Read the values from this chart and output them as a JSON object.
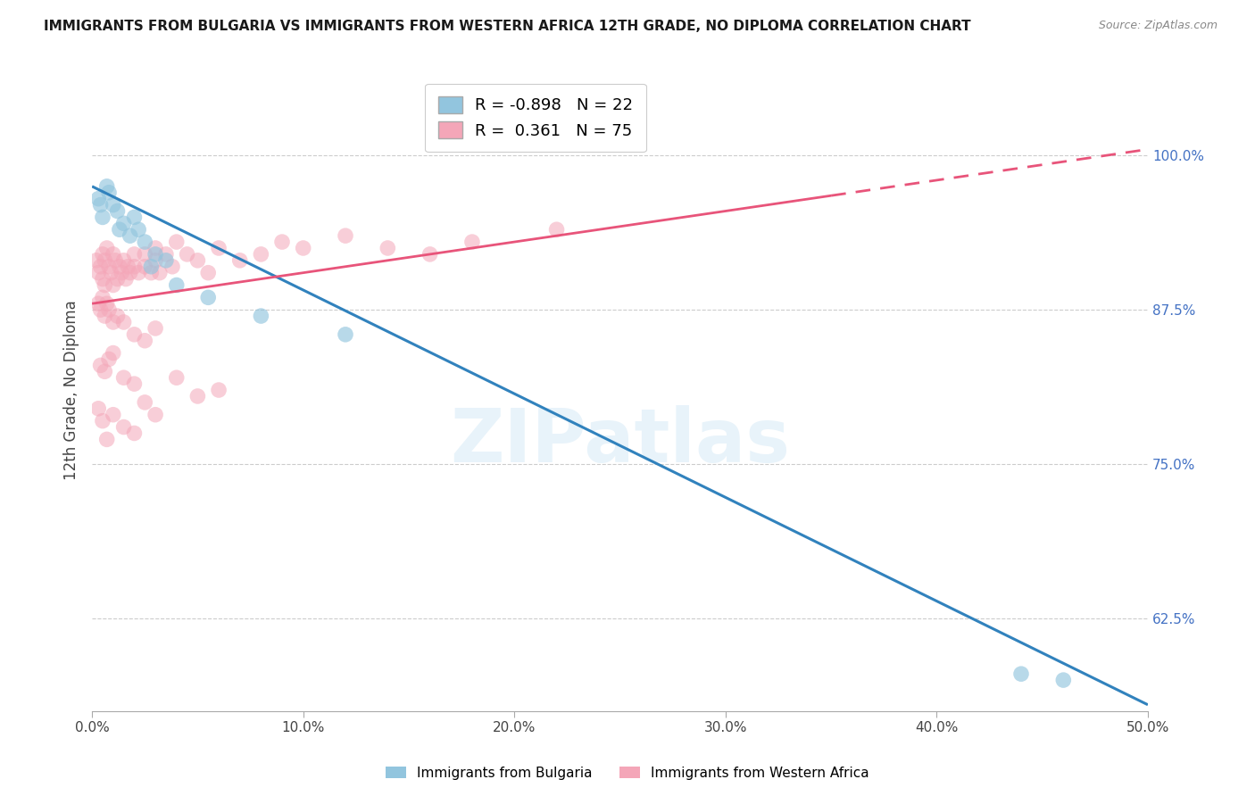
{
  "title": "IMMIGRANTS FROM BULGARIA VS IMMIGRANTS FROM WESTERN AFRICA 12TH GRADE, NO DIPLOMA CORRELATION CHART",
  "source": "Source: ZipAtlas.com",
  "ylabel": "12th Grade, No Diploma",
  "legend_label_blue": "Immigrants from Bulgaria",
  "legend_label_pink": "Immigrants from Western Africa",
  "R_blue": -0.898,
  "N_blue": 22,
  "R_pink": 0.361,
  "N_pink": 75,
  "xlim": [
    0.0,
    50.0
  ],
  "ylim": [
    55.0,
    107.0
  ],
  "yticks": [
    62.5,
    75.0,
    87.5,
    100.0
  ],
  "xticks": [
    0.0,
    10.0,
    20.0,
    30.0,
    40.0,
    50.0
  ],
  "color_blue": "#92c5de",
  "color_pink": "#f4a6b8",
  "color_blue_line": "#3182bd",
  "color_pink_line": "#e8547a",
  "color_axis_right": "#4472C4",
  "watermark": "ZIPatlas",
  "blue_line_x0": 0.0,
  "blue_line_y0": 97.5,
  "blue_line_x1": 50.0,
  "blue_line_y1": 55.5,
  "pink_line_x0": 0.0,
  "pink_line_y0": 88.0,
  "pink_line_x1": 50.0,
  "pink_line_y1": 100.5,
  "pink_solid_x_end": 35.0,
  "blue_scatter_x": [
    0.3,
    0.5,
    0.8,
    1.0,
    1.2,
    1.5,
    1.8,
    2.0,
    2.2,
    2.5,
    3.0,
    3.5,
    0.4,
    0.7,
    1.3,
    2.8,
    4.0,
    5.5,
    8.0,
    12.0,
    44.0,
    46.0
  ],
  "blue_scatter_y": [
    96.5,
    95.0,
    97.0,
    96.0,
    95.5,
    94.5,
    93.5,
    95.0,
    94.0,
    93.0,
    92.0,
    91.5,
    96.0,
    97.5,
    94.0,
    91.0,
    89.5,
    88.5,
    87.0,
    85.5,
    58.0,
    57.5
  ],
  "pink_scatter_x": [
    0.2,
    0.3,
    0.4,
    0.5,
    0.5,
    0.6,
    0.6,
    0.7,
    0.8,
    0.9,
    1.0,
    1.0,
    1.1,
    1.2,
    1.3,
    1.4,
    1.5,
    1.6,
    1.7,
    1.8,
    2.0,
    2.0,
    2.2,
    2.5,
    2.5,
    2.8,
    3.0,
    3.0,
    3.2,
    3.5,
    3.8,
    4.0,
    4.5,
    5.0,
    5.5,
    6.0,
    7.0,
    8.0,
    9.0,
    10.0,
    12.0,
    14.0,
    16.0,
    18.0,
    22.0,
    0.3,
    0.4,
    0.5,
    0.6,
    0.7,
    0.8,
    1.0,
    1.2,
    1.5,
    2.0,
    2.5,
    3.0,
    0.4,
    0.6,
    0.8,
    1.0,
    1.5,
    2.0,
    0.3,
    0.5,
    0.7,
    1.0,
    1.5,
    2.0,
    2.5,
    3.0,
    4.0,
    5.0,
    6.0
  ],
  "pink_scatter_y": [
    91.5,
    90.5,
    91.0,
    90.0,
    92.0,
    91.5,
    89.5,
    92.5,
    91.0,
    90.5,
    92.0,
    89.5,
    91.5,
    90.0,
    91.0,
    90.5,
    91.5,
    90.0,
    91.0,
    90.5,
    92.0,
    91.0,
    90.5,
    92.0,
    91.0,
    90.5,
    92.5,
    91.5,
    90.5,
    92.0,
    91.0,
    93.0,
    92.0,
    91.5,
    90.5,
    92.5,
    91.5,
    92.0,
    93.0,
    92.5,
    93.5,
    92.5,
    92.0,
    93.0,
    94.0,
    88.0,
    87.5,
    88.5,
    87.0,
    88.0,
    87.5,
    86.5,
    87.0,
    86.5,
    85.5,
    85.0,
    86.0,
    83.0,
    82.5,
    83.5,
    84.0,
    82.0,
    81.5,
    79.5,
    78.5,
    77.0,
    79.0,
    78.0,
    77.5,
    80.0,
    79.0,
    82.0,
    80.5,
    81.0
  ]
}
